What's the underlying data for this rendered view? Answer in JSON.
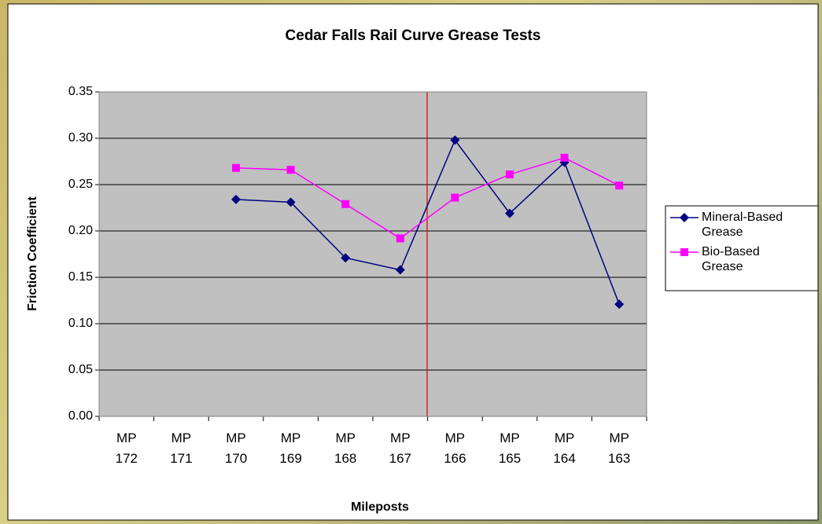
{
  "chart_data": {
    "type": "line",
    "title": "Cedar Falls Rail Curve Grease Tests",
    "x_label": "Mileposts",
    "y_label": "Friction Coefficient",
    "categories": [
      "MP 172",
      "MP 171",
      "MP 170",
      "MP 169",
      "MP 168",
      "MP 167",
      "MP 166",
      "MP 165",
      "MP 164",
      "MP 163"
    ],
    "series": [
      {
        "name": "Mineral-Based Grease",
        "color": "#000080",
        "marker": "diamond",
        "values": [
          null,
          null,
          0.234,
          0.231,
          0.171,
          0.158,
          0.298,
          0.219,
          0.274,
          0.121
        ]
      },
      {
        "name": "Bio-Based Grease",
        "color": "#ff00ff",
        "marker": "square",
        "values": [
          null,
          null,
          0.268,
          0.266,
          0.229,
          0.192,
          0.236,
          0.261,
          0.279,
          0.249
        ]
      }
    ],
    "ylim": [
      0,
      0.35
    ],
    "yticks": [
      {
        "value": 0,
        "label": "0.00"
      },
      0.05,
      {
        "value": 0.1,
        "label": "0.10"
      },
      0.15,
      {
        "value": 0.2,
        "label": "0.20"
      },
      0.25,
      {
        "value": 0.3,
        "label": "0.30"
      },
      0.35
    ],
    "grid": true,
    "legend": "right"
  }
}
